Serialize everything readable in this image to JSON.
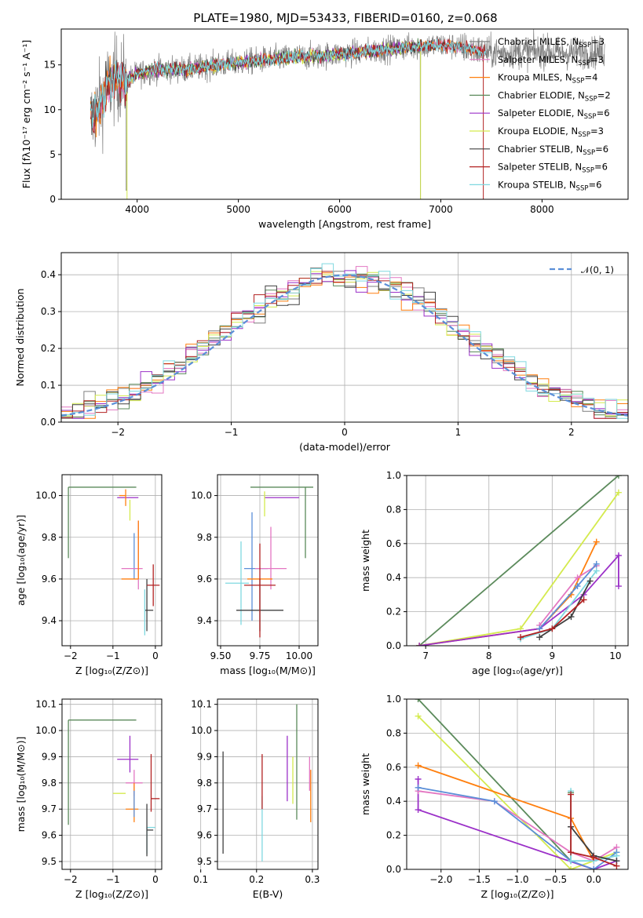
{
  "colors": {
    "chabrier_miles": "#7f7f7f",
    "salpeter_miles": "#e377c2",
    "kroupa_miles": "#ff7f0e",
    "chabrier_elodie": "#5b8a5b",
    "salpeter_elodie": "#9b30c8",
    "kroupa_elodie": "#d4ea4e",
    "chabrier_stelib": "#404040",
    "salpeter_stelib": "#b22222",
    "kroupa_stelib": "#7fd8e0",
    "normal": "#5b8fd8"
  },
  "chart_data": [
    {
      "id": "spectrum",
      "type": "line",
      "title": "PLATE=1980, MJD=53433, FIBERID=0160, z=0.068",
      "xlabel": "wavelength [Angstrom, rest frame]",
      "ylabel": "Flux [fλ10⁻¹⁷ erg cm⁻² s⁻¹ A⁻¹]",
      "xlim": [
        3250,
        8850
      ],
      "ylim": [
        0,
        19
      ],
      "xticks": [
        "4000",
        "5000",
        "6000",
        "7000",
        "8000"
      ],
      "yticks": [
        "0",
        "5",
        "10",
        "15"
      ],
      "legend_position": "top-right",
      "legend": [
        {
          "label": "Chabrier MILES, N",
          "sub": "SSP",
          "n": "=3",
          "color_key": "chabrier_miles"
        },
        {
          "label": "Salpeter MILES, N",
          "sub": "SSP",
          "n": "=3",
          "color_key": "salpeter_miles"
        },
        {
          "label": "Kroupa MILES, N",
          "sub": "SSP",
          "n": "=4",
          "color_key": "kroupa_miles"
        },
        {
          "label": "Chabrier ELODIE, N",
          "sub": "SSP",
          "n": "=2",
          "color_key": "chabrier_elodie"
        },
        {
          "label": "Salpeter ELODIE, N",
          "sub": "SSP",
          "n": "=6",
          "color_key": "salpeter_elodie"
        },
        {
          "label": "Kroupa ELODIE, N",
          "sub": "SSP",
          "n": "=3",
          "color_key": "kroupa_elodie"
        },
        {
          "label": "Chabrier STELIB, N",
          "sub": "SSP",
          "n": "=6",
          "color_key": "chabrier_stelib"
        },
        {
          "label": "Salpeter STELIB, N",
          "sub": "SSP",
          "n": "=6",
          "color_key": "salpeter_stelib"
        },
        {
          "label": "Kroupa STELIB, N",
          "sub": "SSP",
          "n": "=6",
          "color_key": "kroupa_stelib"
        }
      ],
      "continuum": {
        "x": [
          3550,
          3650,
          3700,
          3800,
          3900,
          4000,
          4200,
          4500,
          4800,
          5000,
          5200,
          5500,
          5800,
          6000,
          6200,
          6500,
          6700,
          7000,
          7200,
          7400,
          7600,
          7800,
          8000,
          8200,
          8400,
          8600
        ],
        "y": [
          9,
          11,
          12.5,
          13.5,
          13.2,
          14,
          14.5,
          14.5,
          15,
          15.2,
          15.5,
          15.8,
          16,
          16.2,
          16.4,
          16.8,
          17,
          17.2,
          17,
          16.5,
          16.3,
          16.4,
          16.5,
          16.3,
          16.4,
          16.4
        ]
      }
    },
    {
      "id": "residuals",
      "type": "histogram",
      "xlabel": "(data-model)/error",
      "ylabel": "Normed distribution",
      "xlim": [
        -2.5,
        2.5
      ],
      "ylim": [
        0,
        0.46
      ],
      "xticks": [
        "−2",
        "−1",
        "0",
        "1",
        "2"
      ],
      "yticks": [
        "0.0",
        "0.1",
        "0.2",
        "0.3",
        "0.4"
      ],
      "legend_label": "𝒩(0, 1)",
      "bin_width": 0.1
    },
    {
      "id": "age_vs_z",
      "type": "errorbar",
      "xlabel": "Z [log₁₀(Z/Z⊙)]",
      "ylabel": "age  [log₁₀(age/yr)]",
      "xlim": [
        -2.2,
        0.15
      ],
      "ylim": [
        9.28,
        10.1
      ],
      "xticks": [
        "−2",
        "−1",
        "0"
      ],
      "yticks": [
        "9.4",
        "9.6",
        "9.8",
        "10.0"
      ],
      "points": [
        {
          "c": "chabrier_elodie",
          "x": -2.05,
          "y": 10.04,
          "xe": [
            0,
            1.6
          ],
          "ye": [
            0.34,
            0
          ]
        },
        {
          "c": "salpeter_elodie",
          "x": -0.9,
          "y": 9.99,
          "xe": [
            0,
            0.5
          ],
          "ye": [
            0,
            0
          ]
        },
        {
          "c": "kroupa_elodie",
          "x": -0.6,
          "y": 9.93,
          "xe": [
            0,
            0
          ],
          "ye": [
            0.05,
            0.05
          ]
        },
        {
          "c": "kroupa_miles",
          "x": -0.7,
          "y": 10.0,
          "xe": [
            0.15,
            0
          ],
          "ye": [
            0.05,
            0.03
          ]
        },
        {
          "c": "normal",
          "x": -0.5,
          "y": 9.7,
          "xe": [
            0,
            0
          ],
          "ye": [
            0.1,
            0.12
          ]
        },
        {
          "c": "salpeter_miles",
          "x": -0.4,
          "y": 9.65,
          "xe": [
            0.4,
            0.1
          ],
          "ye": [
            0.1,
            0.23
          ]
        },
        {
          "c": "kroupa_miles",
          "x": -0.6,
          "y": 9.6,
          "xe": [
            0.2,
            0.2
          ],
          "ye": [
            0,
            0
          ]
        },
        {
          "c": "kroupa_miles",
          "x": -0.4,
          "y": 9.7,
          "xe": [
            0,
            0
          ],
          "ye": [
            0.1,
            0.18
          ]
        },
        {
          "c": "chabrier_stelib",
          "x": -0.2,
          "y": 9.45,
          "xe": [
            0.05,
            0.15
          ],
          "ye": [
            0.1,
            0.15
          ]
        },
        {
          "c": "kroupa_stelib",
          "x": -0.25,
          "y": 9.55,
          "xe": [
            0,
            0
          ],
          "ye": [
            0.22,
            0
          ]
        },
        {
          "c": "salpeter_stelib",
          "x": -0.05,
          "y": 9.57,
          "xe": [
            0.15,
            0.15
          ],
          "ye": [
            0.1,
            0.1
          ]
        }
      ]
    },
    {
      "id": "age_vs_mass",
      "type": "errorbar",
      "xlabel": "mass [log₁₀(M/M⊙)]",
      "ylabel": "",
      "xlim": [
        9.48,
        10.12
      ],
      "ylim": [
        9.28,
        10.1
      ],
      "xticks": [
        "9.50",
        "9.75",
        "10.00"
      ],
      "yticks": [
        "9.4",
        "9.6",
        "9.8",
        "10.0"
      ],
      "points": [
        {
          "c": "chabrier_elodie",
          "x": 10.04,
          "y": 10.04,
          "xe": [
            0.35,
            0.05
          ],
          "ye": [
            0.34,
            0
          ]
        },
        {
          "c": "salpeter_elodie",
          "x": 9.88,
          "y": 9.99,
          "xe": [
            0.1,
            0.12
          ],
          "ye": [
            0,
            0
          ]
        },
        {
          "c": "kroupa_elodie",
          "x": 9.78,
          "y": 9.95,
          "xe": [
            0,
            0
          ],
          "ye": [
            0.05,
            0.07
          ]
        },
        {
          "c": "normal",
          "x": 9.7,
          "y": 9.65,
          "xe": [
            0.05,
            0.1
          ],
          "ye": [
            0.25,
            0.27
          ]
        },
        {
          "c": "salpeter_miles",
          "x": 9.82,
          "y": 9.65,
          "xe": [
            0.1,
            0.1
          ],
          "ye": [
            0.1,
            0.2
          ]
        },
        {
          "c": "kroupa_miles",
          "x": 9.75,
          "y": 9.6,
          "xe": [
            0.08,
            0.08
          ],
          "ye": [
            0,
            0
          ]
        },
        {
          "c": "kroupa_stelib",
          "x": 9.63,
          "y": 9.58,
          "xe": [
            0.1,
            0.05
          ],
          "ye": [
            0.2,
            0.2
          ]
        },
        {
          "c": "chabrier_stelib",
          "x": 9.75,
          "y": 9.45,
          "xe": [
            0.15,
            0.15
          ],
          "ye": [
            0.1,
            0.15
          ]
        },
        {
          "c": "salpeter_stelib",
          "x": 9.75,
          "y": 9.57,
          "xe": [
            0.1,
            0.1
          ],
          "ye": [
            0.25,
            0.2
          ]
        }
      ]
    },
    {
      "id": "weight_vs_age",
      "type": "line",
      "xlabel": "age  [log₁₀(age/yr)]",
      "ylabel": "mass weight",
      "xlim": [
        6.7,
        10.2
      ],
      "ylim": [
        0,
        1
      ],
      "xticks": [
        "7",
        "8",
        "9",
        "10"
      ],
      "yticks": [
        "0.0",
        "0.2",
        "0.4",
        "0.6",
        "0.8",
        "1.0"
      ],
      "series": [
        {
          "c": "chabrier_elodie",
          "x": [
            6.9,
            10.05
          ],
          "y": [
            0.0,
            1.0
          ]
        },
        {
          "c": "kroupa_elodie",
          "x": [
            6.9,
            8.5,
            10.05
          ],
          "y": [
            0.0,
            0.1,
            0.9
          ]
        },
        {
          "c": "kroupa_miles",
          "x": [
            6.9,
            8.8,
            9.3,
            9.7
          ],
          "y": [
            0.0,
            0.1,
            0.3,
            0.61
          ]
        },
        {
          "c": "salpeter_elodie",
          "x": [
            6.9,
            8.8,
            9.5,
            10.05,
            10.05
          ],
          "y": [
            0.0,
            0.1,
            0.3,
            0.53,
            0.35
          ]
        },
        {
          "c": "salpeter_miles",
          "x": [
            8.8,
            9.4,
            9.7
          ],
          "y": [
            0.12,
            0.4,
            0.47
          ]
        },
        {
          "c": "normal",
          "x": [
            8.8,
            9.4,
            9.7
          ],
          "y": [
            0.1,
            0.35,
            0.48
          ]
        },
        {
          "c": "kroupa_stelib",
          "x": [
            8.5,
            9.0,
            9.7
          ],
          "y": [
            0.04,
            0.1,
            0.44
          ]
        },
        {
          "c": "chabrier_stelib",
          "x": [
            8.8,
            9.3,
            9.6
          ],
          "y": [
            0.05,
            0.17,
            0.38
          ]
        },
        {
          "c": "salpeter_stelib",
          "x": [
            8.5,
            9.0,
            9.5
          ],
          "y": [
            0.05,
            0.1,
            0.27
          ]
        }
      ]
    },
    {
      "id": "mass_vs_z",
      "type": "errorbar",
      "xlabel": "Z [log₁₀(Z/Z⊙)]",
      "ylabel": "mass [log₁₀(M/M⊙)]",
      "xlim": [
        -2.2,
        0.15
      ],
      "ylim": [
        9.47,
        10.12
      ],
      "xticks": [
        "−2",
        "−1",
        "0"
      ],
      "yticks": [
        "9.5",
        "9.6",
        "9.7",
        "9.8",
        "9.9",
        "10.0",
        "10.1"
      ],
      "points": [
        {
          "c": "chabrier_elodie",
          "x": -2.05,
          "y": 10.04,
          "xe": [
            0,
            1.6
          ],
          "ye": [
            0.4,
            0
          ]
        },
        {
          "c": "salpeter_elodie",
          "x": -0.6,
          "y": 9.89,
          "xe": [
            0.3,
            0.2
          ],
          "ye": [
            0.05,
            0.09
          ]
        },
        {
          "c": "salpeter_miles",
          "x": -0.5,
          "y": 9.8,
          "xe": [
            0.2,
            0.2
          ],
          "ye": [
            0.05,
            0.05
          ]
        },
        {
          "c": "kroupa_elodie",
          "x": -0.7,
          "y": 9.76,
          "xe": [
            0.3,
            0
          ],
          "ye": [
            0,
            0
          ]
        },
        {
          "c": "kroupa_miles",
          "x": -0.5,
          "y": 9.7,
          "xe": [
            0.2,
            0.1
          ],
          "ye": [
            0.05,
            0.1
          ]
        },
        {
          "c": "normal",
          "x": -0.5,
          "y": 9.72,
          "xe": [
            0,
            0
          ],
          "ye": [
            0.05,
            0.05
          ]
        },
        {
          "c": "salpeter_stelib",
          "x": -0.1,
          "y": 9.74,
          "xe": [
            0,
            0.2
          ],
          "ye": [
            0.05,
            0.17
          ]
        },
        {
          "c": "kroupa_stelib",
          "x": -0.2,
          "y": 9.63,
          "xe": [
            0,
            0.2
          ],
          "ye": [
            0.1,
            0
          ]
        },
        {
          "c": "chabrier_stelib",
          "x": -0.2,
          "y": 9.62,
          "xe": [
            0,
            0.15
          ],
          "ye": [
            0.1,
            0.1
          ]
        }
      ]
    },
    {
      "id": "mass_vs_ebv",
      "type": "errorbar",
      "xlabel": "E(B-V)",
      "ylabel": "",
      "xlim": [
        0.13,
        0.31
      ],
      "ylim": [
        9.47,
        10.12
      ],
      "xticks": [
        "0.1",
        "0.2",
        "0.3"
      ],
      "yticks": [
        "9.5",
        "9.6",
        "9.7",
        "9.8",
        "9.9",
        "10.0",
        "10.1"
      ],
      "points": [
        {
          "c": "chabrier_stelib",
          "x": 0.14,
          "y": 9.72,
          "xe": [
            0,
            0
          ],
          "ye": [
            0.19,
            0.2
          ]
        },
        {
          "c": "kroupa_stelib",
          "x": 0.21,
          "y": 9.62,
          "xe": [
            0,
            0
          ],
          "ye": [
            0.12,
            0.13
          ]
        },
        {
          "c": "salpeter_stelib",
          "x": 0.21,
          "y": 9.8,
          "xe": [
            0,
            0
          ],
          "ye": [
            0.1,
            0.11
          ]
        },
        {
          "c": "salpeter_elodie",
          "x": 0.255,
          "y": 9.85,
          "xe": [
            0,
            0
          ],
          "ye": [
            0.12,
            0.13
          ]
        },
        {
          "c": "kroupa_elodie",
          "x": 0.265,
          "y": 9.82,
          "xe": [
            0,
            0
          ],
          "ye": [
            0.1,
            0.08
          ]
        },
        {
          "c": "chabrier_elodie",
          "x": 0.272,
          "y": 9.88,
          "xe": [
            0,
            0
          ],
          "ye": [
            0.22,
            0.22
          ]
        },
        {
          "c": "kroupa_miles",
          "x": 0.297,
          "y": 9.75,
          "xe": [
            0,
            0
          ],
          "ye": [
            0.1,
            0.1
          ]
        },
        {
          "c": "salpeter_miles",
          "x": 0.295,
          "y": 9.82,
          "xe": [
            0,
            0
          ],
          "ye": [
            0.05,
            0.08
          ]
        }
      ]
    },
    {
      "id": "weight_vs_z",
      "type": "line",
      "xlabel": "Z [log₁₀(Z/Z⊙)]",
      "ylabel": "mass weight",
      "xlim": [
        -2.45,
        0.45
      ],
      "ylim": [
        0,
        1
      ],
      "xticks": [
        "−2.0",
        "−1.5",
        "−1.0",
        "−0.5",
        "0.0"
      ],
      "yticks": [
        "0.0",
        "0.2",
        "0.4",
        "0.6",
        "0.8",
        "1.0"
      ],
      "series": [
        {
          "c": "chabrier_elodie",
          "x": [
            -2.3,
            -0.3,
            -0.3
          ],
          "y": [
            1.0,
            0.05,
            0.45
          ]
        },
        {
          "c": "kroupa_elodie",
          "x": [
            -2.3,
            -0.3,
            0.3
          ],
          "y": [
            0.9,
            0.0,
            0.1
          ]
        },
        {
          "c": "kroupa_miles",
          "x": [
            -2.3,
            -0.3,
            0.0
          ],
          "y": [
            0.61,
            0.3,
            0.05
          ]
        },
        {
          "c": "salpeter_elodie",
          "x": [
            -2.3,
            -2.3,
            0.0,
            0.3
          ],
          "y": [
            0.53,
            0.35,
            0.0,
            0.05
          ]
        },
        {
          "c": "salpeter_miles",
          "x": [
            -2.3,
            -1.3,
            -0.3,
            0.0,
            0.3
          ],
          "y": [
            0.46,
            0.4,
            0.1,
            0.05,
            0.13
          ]
        },
        {
          "c": "normal",
          "x": [
            -2.3,
            -1.3,
            -0.3,
            0.0,
            0.3
          ],
          "y": [
            0.48,
            0.4,
            0.05,
            0.0,
            0.1
          ]
        },
        {
          "c": "kroupa_stelib",
          "x": [
            -0.3,
            -0.3,
            0.0,
            0.3
          ],
          "y": [
            0.46,
            0.05,
            0.05,
            0.08
          ]
        },
        {
          "c": "chabrier_stelib",
          "x": [
            -0.3,
            0.0,
            0.3
          ],
          "y": [
            0.25,
            0.08,
            0.05
          ]
        },
        {
          "c": "salpeter_stelib",
          "x": [
            -0.3,
            -0.3,
            0.0,
            0.3
          ],
          "y": [
            0.44,
            0.1,
            0.07,
            0.02
          ]
        }
      ]
    }
  ]
}
